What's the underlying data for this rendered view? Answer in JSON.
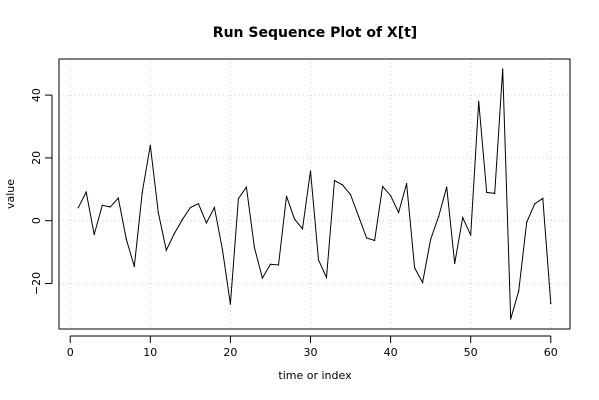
{
  "chart_data": {
    "type": "line",
    "title": "Run Sequence Plot of X[t]",
    "xlabel": "time or index",
    "ylabel": "value",
    "xlim": [
      -1.4,
      62.4
    ],
    "ylim": [
      -34.5,
      51.5
    ],
    "xticks": [
      0,
      10,
      20,
      30,
      40,
      50,
      60
    ],
    "yticks": [
      -20,
      0,
      20,
      40
    ],
    "grid": true,
    "series": [
      {
        "x": [
          1,
          2,
          3,
          4,
          5,
          6,
          7,
          8,
          9,
          10,
          11,
          12,
          13,
          14,
          15,
          16,
          17,
          18,
          19,
          20,
          21,
          22,
          23,
          24,
          25,
          26,
          27,
          28,
          29,
          30,
          31,
          32,
          33,
          34,
          35,
          36,
          37,
          38,
          39,
          40,
          41,
          42,
          43,
          44,
          45,
          46,
          47,
          48,
          49,
          50,
          51,
          52,
          53,
          54,
          55,
          56,
          57,
          58,
          59,
          60
        ],
        "values": [
          4.1,
          9.1,
          -4.4,
          4.9,
          4.4,
          7.2,
          -5.9,
          -14.6,
          9.1,
          24.0,
          2.6,
          -9.4,
          -4.1,
          0.3,
          4.2,
          5.4,
          -0.7,
          4.2,
          -9.1,
          -26.6,
          7.0,
          10.7,
          -8.5,
          -18.3,
          -13.9,
          -14.1,
          7.8,
          0.5,
          -2.6,
          15.9,
          -12.5,
          -18.1,
          12.8,
          11.4,
          8.3,
          1.4,
          -5.5,
          -6.3,
          10.9,
          8.0,
          2.6,
          11.8,
          -15.0,
          -19.7,
          -6.0,
          1.3,
          10.7,
          -13.6,
          1.0,
          -4.6,
          38.0,
          9.0,
          8.7,
          48.3,
          -31.3,
          -22.4,
          -0.5,
          5.4,
          7.1,
          -26.4
        ],
        "color": "#000000"
      }
    ]
  }
}
